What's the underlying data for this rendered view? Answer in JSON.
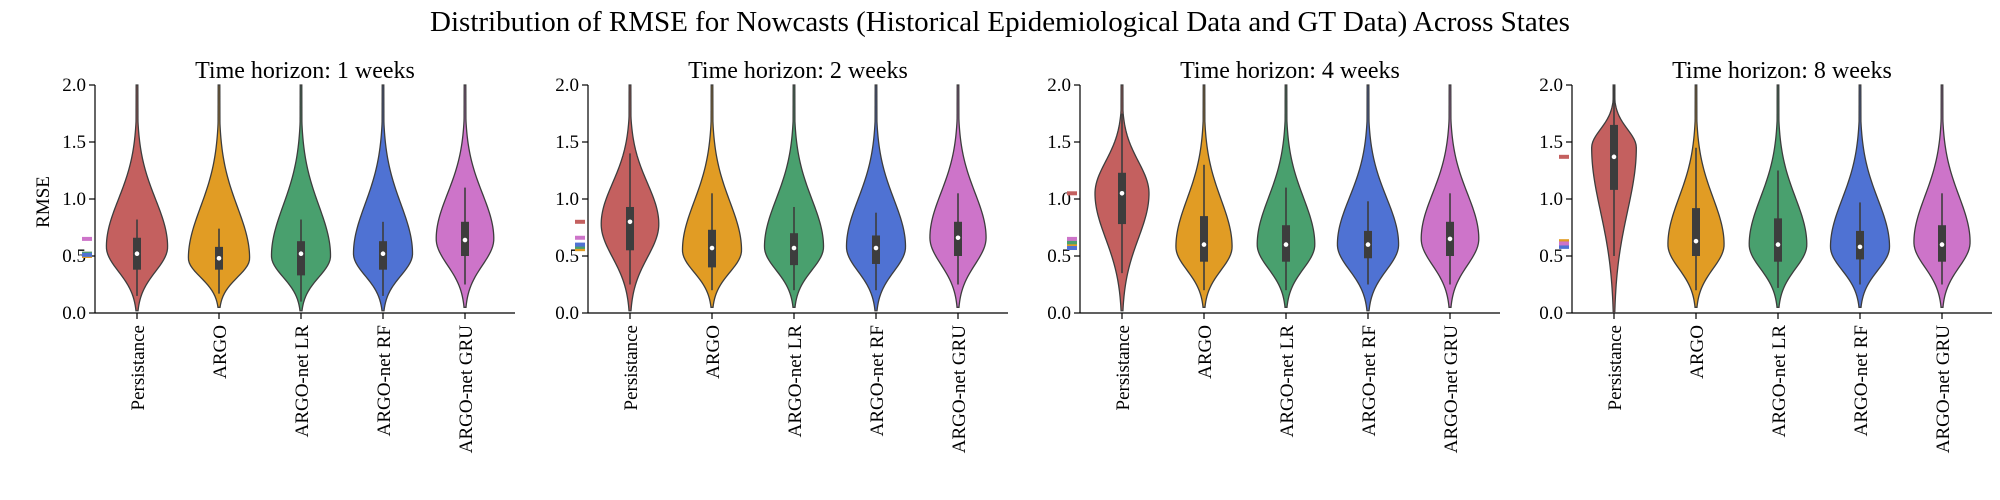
{
  "figure": {
    "title": "Distribution of RMSE for Nowcasts (Historical Epidemiological Data and GT Data) Across States"
  },
  "chart_data": {
    "type": "violin",
    "ylabel": "RMSE",
    "ylim": [
      0.0,
      2.0
    ],
    "yticks": [
      "0.0",
      "0.5",
      "1.0",
      "1.5",
      "2.0"
    ],
    "categories": [
      "Persistance",
      "ARGO",
      "ARGO-net LR",
      "ARGO-net RF",
      "ARGO-net GRU"
    ],
    "colors": {
      "Persistance": "#c4605f",
      "ARGO": "#e19c24",
      "ARGO-net LR": "#49a06e",
      "ARGO-net RF": "#4f72d3",
      "ARGO-net GRU": "#cd74c9"
    },
    "panels": [
      {
        "title": "Time horizon: 1 weeks",
        "mean_markers": {
          "Persistance": 0.52,
          "ARGO": 0.5,
          "ARGO-net LR": 0.52,
          "ARGO-net RF": 0.51,
          "ARGO-net GRU": 0.65
        },
        "violins": [
          {
            "name": "Persistance",
            "min": 0.02,
            "max": 2.0,
            "q1": 0.38,
            "median": 0.52,
            "q3": 0.66,
            "whisker_low": 0.15,
            "whisker_high": 0.82,
            "mode": 0.58,
            "width": 0.85
          },
          {
            "name": "ARGO",
            "min": 0.05,
            "max": 2.0,
            "q1": 0.38,
            "median": 0.48,
            "q3": 0.58,
            "whisker_low": 0.17,
            "whisker_high": 0.74,
            "mode": 0.48,
            "width": 0.85
          },
          {
            "name": "ARGO-net LR",
            "min": 0.02,
            "max": 2.0,
            "q1": 0.33,
            "median": 0.52,
            "q3": 0.63,
            "whisker_low": 0.1,
            "whisker_high": 0.82,
            "mode": 0.5,
            "width": 0.82
          },
          {
            "name": "ARGO-net RF",
            "min": 0.02,
            "max": 2.0,
            "q1": 0.38,
            "median": 0.52,
            "q3": 0.63,
            "whisker_low": 0.15,
            "whisker_high": 0.8,
            "mode": 0.52,
            "width": 0.82
          },
          {
            "name": "ARGO-net GRU",
            "min": 0.05,
            "max": 2.0,
            "q1": 0.5,
            "median": 0.64,
            "q3": 0.8,
            "whisker_low": 0.25,
            "whisker_high": 1.1,
            "mode": 0.65,
            "width": 0.8
          }
        ]
      },
      {
        "title": "Time horizon: 2 weeks",
        "mean_markers": {
          "Persistance": 0.8,
          "ARGO": 0.56,
          "ARGO-net LR": 0.58,
          "ARGO-net RF": 0.6,
          "ARGO-net GRU": 0.66
        },
        "violins": [
          {
            "name": "Persistance",
            "min": 0.02,
            "max": 2.0,
            "q1": 0.55,
            "median": 0.8,
            "q3": 0.93,
            "whisker_low": 0.25,
            "whisker_high": 1.4,
            "mode": 0.78,
            "width": 0.8
          },
          {
            "name": "ARGO",
            "min": 0.05,
            "max": 2.0,
            "q1": 0.4,
            "median": 0.57,
            "q3": 0.73,
            "whisker_low": 0.2,
            "whisker_high": 1.05,
            "mode": 0.55,
            "width": 0.82
          },
          {
            "name": "ARGO-net LR",
            "min": 0.05,
            "max": 2.0,
            "q1": 0.42,
            "median": 0.57,
            "q3": 0.7,
            "whisker_low": 0.2,
            "whisker_high": 0.93,
            "mode": 0.58,
            "width": 0.82
          },
          {
            "name": "ARGO-net RF",
            "min": 0.02,
            "max": 2.0,
            "q1": 0.43,
            "median": 0.57,
            "q3": 0.68,
            "whisker_low": 0.2,
            "whisker_high": 0.88,
            "mode": 0.58,
            "width": 0.82
          },
          {
            "name": "ARGO-net GRU",
            "min": 0.05,
            "max": 2.0,
            "q1": 0.5,
            "median": 0.66,
            "q3": 0.8,
            "whisker_low": 0.25,
            "whisker_high": 1.05,
            "mode": 0.66,
            "width": 0.78
          }
        ]
      },
      {
        "title": "Time horizon: 4 weeks",
        "mean_markers": {
          "Persistance": 1.05,
          "ARGO": 0.6,
          "ARGO-net LR": 0.62,
          "ARGO-net RF": 0.57,
          "ARGO-net GRU": 0.65
        },
        "violins": [
          {
            "name": "Persistance",
            "min": 0.02,
            "max": 2.0,
            "q1": 0.78,
            "median": 1.05,
            "q3": 1.23,
            "whisker_low": 0.35,
            "whisker_high": 1.75,
            "mode": 1.05,
            "width": 0.75
          },
          {
            "name": "ARGO",
            "min": 0.05,
            "max": 2.0,
            "q1": 0.45,
            "median": 0.6,
            "q3": 0.85,
            "whisker_low": 0.2,
            "whisker_high": 1.3,
            "mode": 0.58,
            "width": 0.78
          },
          {
            "name": "ARGO-net LR",
            "min": 0.05,
            "max": 2.0,
            "q1": 0.45,
            "median": 0.6,
            "q3": 0.77,
            "whisker_low": 0.2,
            "whisker_high": 1.1,
            "mode": 0.6,
            "width": 0.8
          },
          {
            "name": "ARGO-net RF",
            "min": 0.02,
            "max": 2.0,
            "q1": 0.48,
            "median": 0.6,
            "q3": 0.72,
            "whisker_low": 0.25,
            "whisker_high": 0.98,
            "mode": 0.6,
            "width": 0.85
          },
          {
            "name": "ARGO-net GRU",
            "min": 0.05,
            "max": 2.0,
            "q1": 0.5,
            "median": 0.65,
            "q3": 0.8,
            "whisker_low": 0.25,
            "whisker_high": 1.05,
            "mode": 0.65,
            "width": 0.8
          }
        ]
      },
      {
        "title": "Time horizon: 8 weeks",
        "mean_markers": {
          "Persistance": 1.37,
          "ARGO": 0.63,
          "ARGO-net LR": 0.6,
          "ARGO-net RF": 0.58,
          "ARGO-net GRU": 0.61
        },
        "violins": [
          {
            "name": "Persistance",
            "min": 0.0,
            "max": 2.0,
            "q1": 1.08,
            "median": 1.37,
            "q3": 1.65,
            "whisker_low": 0.5,
            "whisker_high": 2.0,
            "mode": 1.45,
            "width": 0.62
          },
          {
            "name": "ARGO",
            "min": 0.05,
            "max": 2.0,
            "q1": 0.5,
            "median": 0.63,
            "q3": 0.92,
            "whisker_low": 0.2,
            "whisker_high": 1.45,
            "mode": 0.6,
            "width": 0.78
          },
          {
            "name": "ARGO-net LR",
            "min": 0.05,
            "max": 2.0,
            "q1": 0.45,
            "median": 0.6,
            "q3": 0.83,
            "whisker_low": 0.22,
            "whisker_high": 1.25,
            "mode": 0.6,
            "width": 0.8
          },
          {
            "name": "ARGO-net RF",
            "min": 0.05,
            "max": 2.0,
            "q1": 0.47,
            "median": 0.58,
            "q3": 0.72,
            "whisker_low": 0.25,
            "whisker_high": 0.97,
            "mode": 0.58,
            "width": 0.82
          },
          {
            "name": "ARGO-net GRU",
            "min": 0.05,
            "max": 2.0,
            "q1": 0.45,
            "median": 0.6,
            "q3": 0.77,
            "whisker_low": 0.25,
            "whisker_high": 1.05,
            "mode": 0.62,
            "width": 0.78
          }
        ]
      }
    ]
  }
}
